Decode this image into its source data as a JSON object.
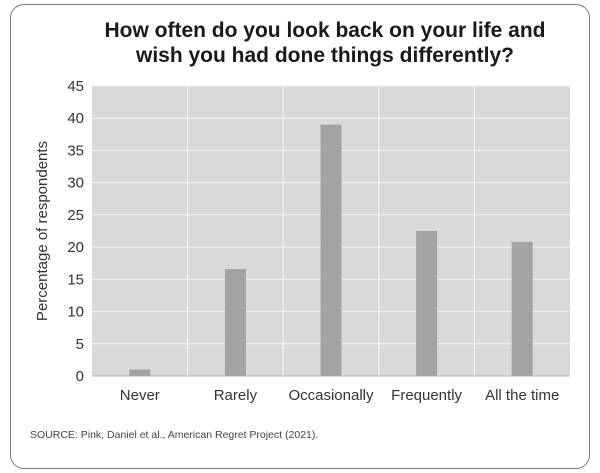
{
  "chart_data": {
    "type": "bar",
    "title": [
      "How often do you look back on your life and",
      "wish you had done things differently?"
    ],
    "xlabel": "",
    "ylabel": "Percentage of respondents",
    "categories": [
      "Never",
      "Rarely",
      "Occasionally",
      "Frequently",
      "All the time"
    ],
    "values": [
      1.0,
      16.6,
      39.0,
      22.5,
      20.8
    ],
    "ylim": [
      0,
      45
    ],
    "yticks": [
      "0",
      "5",
      "10",
      "15",
      "20",
      "25",
      "30",
      "35",
      "40",
      "45"
    ],
    "grid": true,
    "legend": "none",
    "source": "SOURCE: Pink, Daniel et al., American Regret Project (2021).",
    "colors": {
      "plot_bg": "#d9d9d9",
      "bar": "#a3a3a3",
      "gridline": "#f0f0f0",
      "text": "#333333"
    }
  }
}
